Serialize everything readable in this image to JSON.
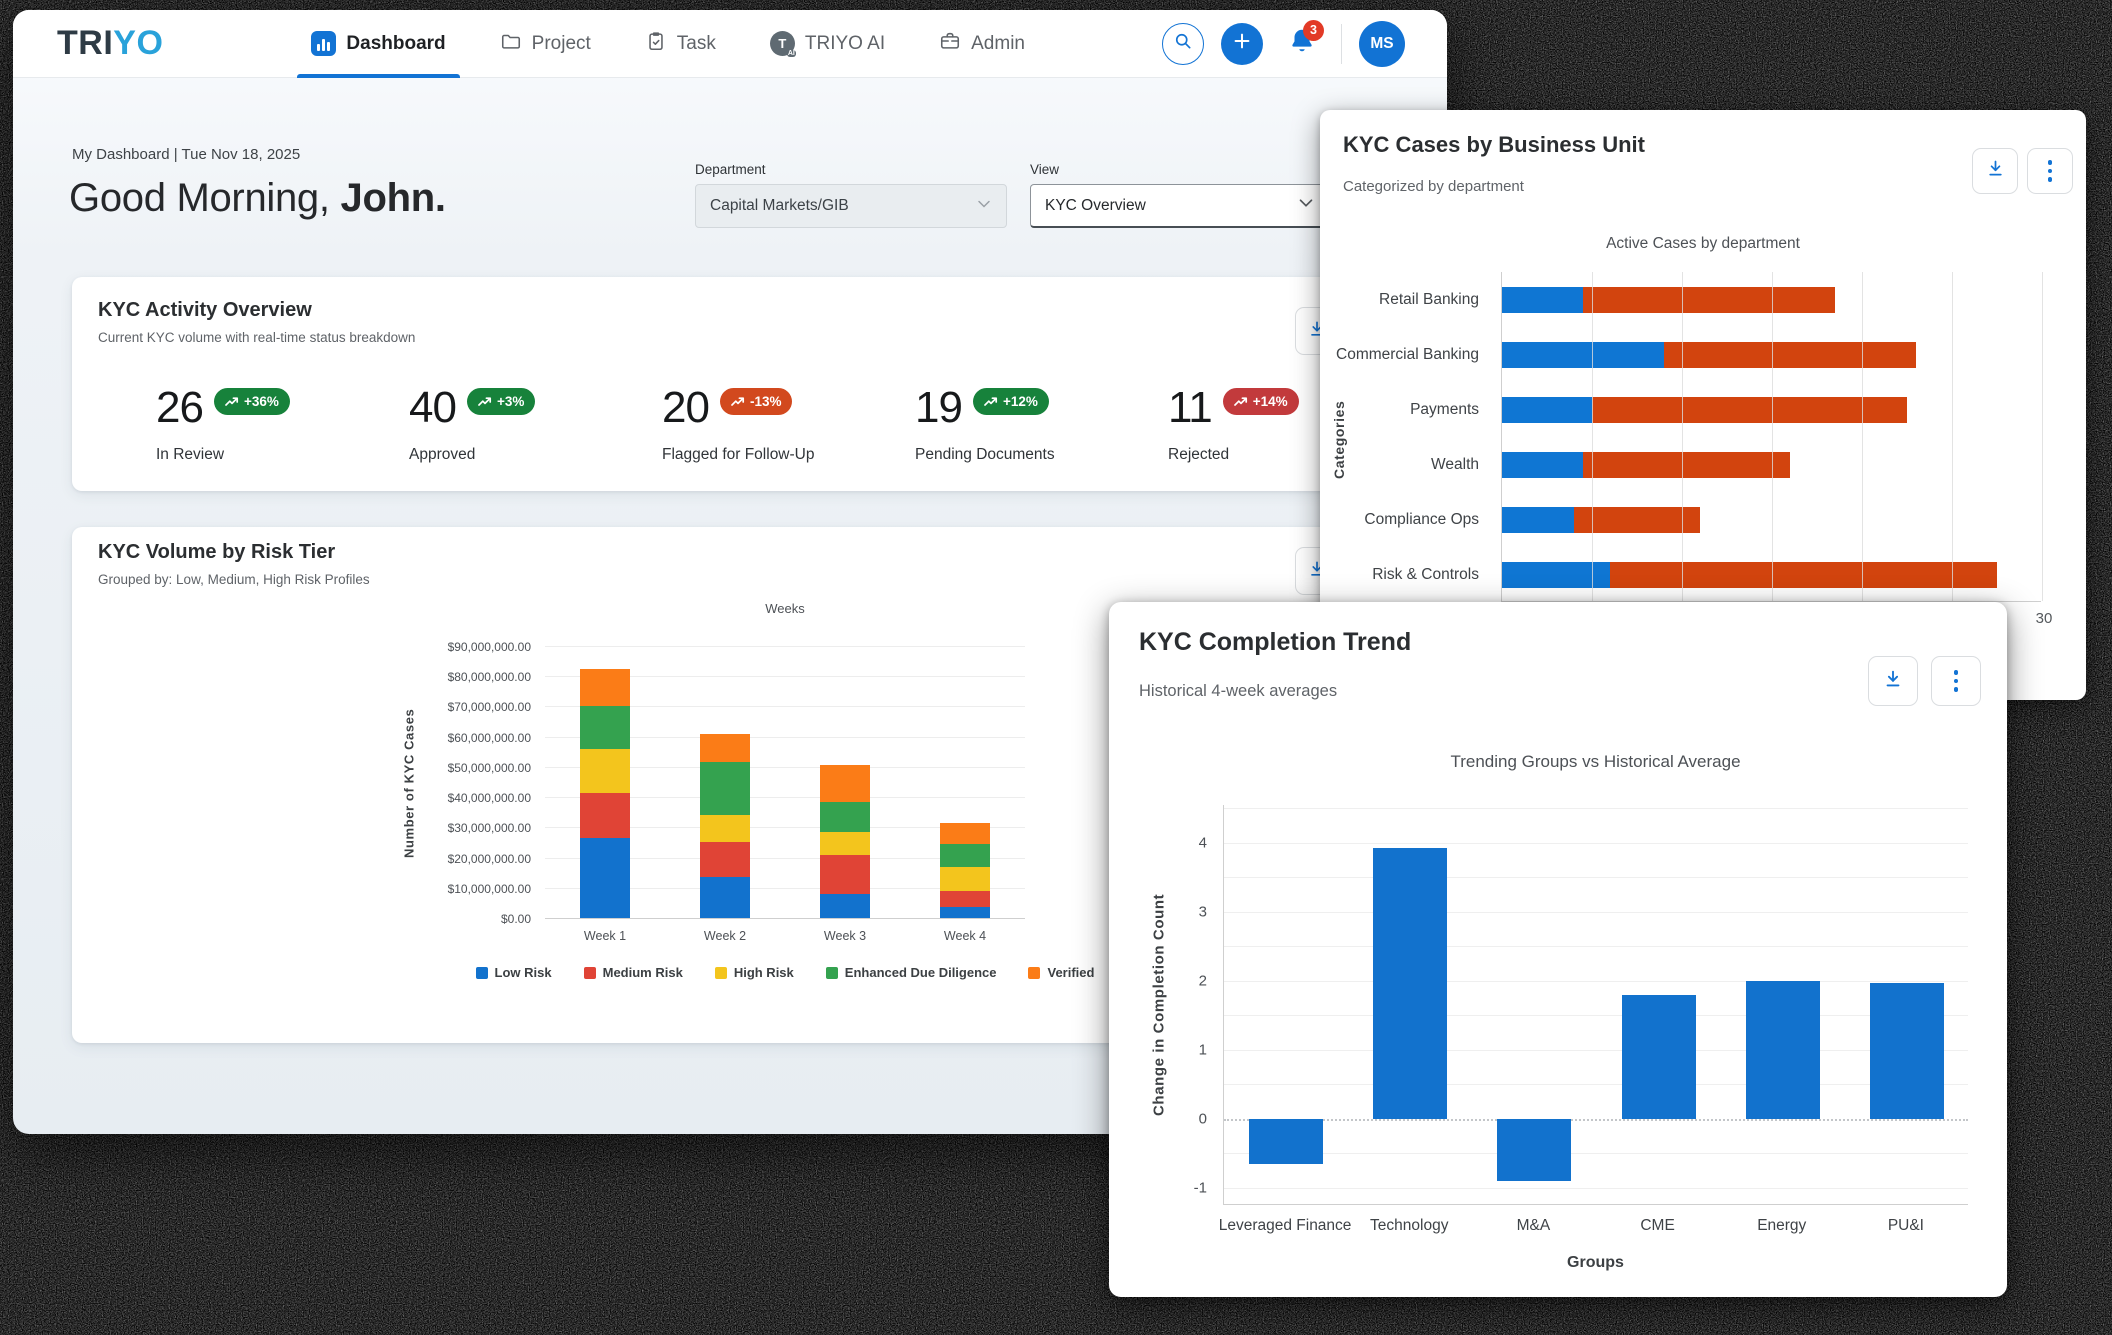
{
  "colors": {
    "accent_blue": "#1273d4",
    "vermillion": "#d2440e",
    "badge_green": "#17823b",
    "badge_orange": "#d2491e",
    "badge_red": "#c23a3c",
    "logo_dark": "#2e3b45",
    "logo_blue": "#29a2da"
  },
  "nav": {
    "logo": {
      "part1": "TRI",
      "part2": "YO"
    },
    "tabs": [
      {
        "label": "Dashboard",
        "icon": "dashboard",
        "active": true
      },
      {
        "label": "Project",
        "icon": "project",
        "active": false
      },
      {
        "label": "Task",
        "icon": "task",
        "active": false
      },
      {
        "label": "TRIYO AI",
        "icon": "triyo-ai",
        "active": false
      },
      {
        "label": "Admin",
        "icon": "admin",
        "active": false
      }
    ],
    "notification_count": "3",
    "avatar_initials": "MS"
  },
  "header": {
    "breadcrumb": "My Dashboard | Tue Nov 18, 2025",
    "greeting_prefix": "Good Morning, ",
    "greeting_name": "John.",
    "department": {
      "label": "Department",
      "value": "Capital Markets/GIB"
    },
    "view": {
      "label": "View",
      "value": "KYC Overview"
    }
  },
  "cards": {
    "activity": {
      "title": "KYC Activity Overview",
      "subtitle": "Current KYC volume with real-time status breakdown",
      "stats": [
        {
          "value": "26",
          "delta": "+36%",
          "tone": "green",
          "label": "In Review"
        },
        {
          "value": "40",
          "delta": "+3%",
          "tone": "green",
          "label": "Approved"
        },
        {
          "value": "20",
          "delta": "-13%",
          "tone": "orange",
          "label": "Flagged for Follow-Up"
        },
        {
          "value": "19",
          "delta": "+12%",
          "tone": "green",
          "label": "Pending Documents"
        },
        {
          "value": "11",
          "delta": "+14%",
          "tone": "red",
          "label": "Rejected"
        }
      ]
    },
    "risk": {
      "title": "KYC Volume by Risk Tier",
      "subtitle": "Grouped by: Low, Medium, High Risk Profiles"
    },
    "business": {
      "title": "KYC Cases by Business Unit",
      "subtitle": "Categorized by department"
    },
    "trend": {
      "title": "KYC Completion Trend",
      "subtitle": "Historical 4-week averages"
    }
  },
  "chart_data": [
    {
      "id": "risk_tier",
      "type": "bar",
      "stacked": true,
      "title": "Weeks",
      "ylabel": "Number of KYC Cases",
      "categories": [
        "Week 1",
        "Week 2",
        "Week 3",
        "Week 4"
      ],
      "series": [
        {
          "name": "Low Risk",
          "color": "#1272cd",
          "values": [
            26500000,
            13500000,
            8000000,
            3500000
          ]
        },
        {
          "name": "Medium Risk",
          "color": "#e04436",
          "values": [
            15000000,
            11500000,
            13000000,
            5500000
          ]
        },
        {
          "name": "High Risk",
          "color": "#f3c51d",
          "values": [
            14500000,
            9000000,
            7500000,
            8000000
          ]
        },
        {
          "name": "Enhanced Due Diligence",
          "color": "#34a24f",
          "values": [
            14000000,
            17500000,
            10000000,
            7500000
          ]
        },
        {
          "name": "Verified",
          "color": "#fb7c17",
          "values": [
            12500000,
            9500000,
            12000000,
            7000000
          ]
        }
      ],
      "ylim": [
        0,
        90000000
      ],
      "ytick_step": 10000000,
      "ytick_format": "currency",
      "legend_position": "bottom",
      "grid": true
    },
    {
      "id": "business_unit",
      "type": "bar",
      "orientation": "horizontal",
      "stacked": true,
      "title": "Active Cases by department",
      "ylabel": "Categories",
      "categories": [
        "Retail Banking",
        "Commercial Banking",
        "Payments",
        "Wealth",
        "Compliance Ops",
        "Risk & Controls"
      ],
      "series": [
        {
          "name": "segment-blue",
          "color": "#0f76d3",
          "values": [
            4.5,
            9,
            5,
            4.5,
            4,
            6
          ]
        },
        {
          "name": "segment-orange",
          "color": "#d2440e",
          "values": [
            14,
            14,
            17.5,
            11.5,
            7,
            21.5
          ]
        }
      ],
      "xlim": [
        0,
        30
      ],
      "xtick_step": 5,
      "visible_xtick_label": "30",
      "grid": true
    },
    {
      "id": "completion_trend",
      "type": "bar",
      "title": "Trending Groups vs Historical Average",
      "xlabel": "Groups",
      "ylabel": "Change in Completion Count",
      "categories": [
        "Leveraged Finance",
        "Technology",
        "M&A",
        "CME",
        "Energy",
        "PU&I"
      ],
      "values": [
        -0.65,
        3.93,
        -0.9,
        1.8,
        2.0,
        1.97
      ],
      "bar_color": "#1272cd",
      "ylim": [
        -1.25,
        4.55
      ],
      "yticks": [
        -1,
        0,
        1,
        2,
        3,
        4
      ],
      "zero_line": "dotted",
      "grid": true
    }
  ]
}
